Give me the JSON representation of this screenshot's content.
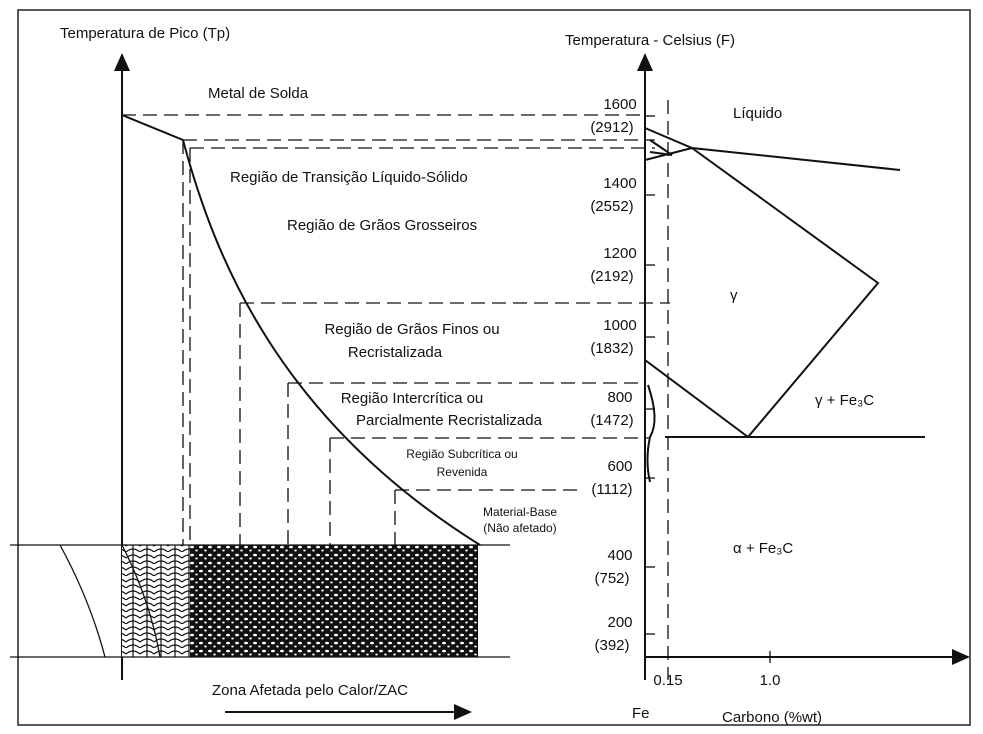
{
  "left_axis": {
    "title": "Temperatura de Pico (Tp)"
  },
  "right_axis": {
    "title": "Temperatura - Celsius (F)",
    "ticks": [
      {
        "celsius": "1600",
        "fahrenheit": "(2912)"
      },
      {
        "celsius": "1400",
        "fahrenheit": "(2552)"
      },
      {
        "celsius": "1200",
        "fahrenheit": "(2192)"
      },
      {
        "celsius": "1000",
        "fahrenheit": "(1832)"
      },
      {
        "celsius": "800",
        "fahrenheit": "(1472)"
      },
      {
        "celsius": "600",
        "fahrenheit": "(1112)"
      },
      {
        "celsius": "400",
        "fahrenheit": "(752)"
      },
      {
        "celsius": "200",
        "fahrenheit": "(392)"
      }
    ]
  },
  "regions": [
    {
      "lines": [
        "Metal de Solda"
      ]
    },
    {
      "lines": [
        "Região de Transição Líquido-Sólido"
      ]
    },
    {
      "lines": [
        "Região de Grãos Grosseiros"
      ]
    },
    {
      "lines": [
        "Região de Grãos Finos ou",
        "Recristalizada"
      ]
    },
    {
      "lines": [
        "Região Intercrítica ou",
        "Parcialmente Recristalizada"
      ]
    },
    {
      "lines": [
        "Região Subcrítica ou",
        "Revenida"
      ]
    },
    {
      "lines": [
        "Material-Base",
        "(Não afetado)"
      ]
    }
  ],
  "phases": [
    "Líquido",
    "γ",
    "γ + Fe₃C",
    "α + Fe₃C"
  ],
  "x_axis": {
    "ticks": [
      "0.15",
      "1.0"
    ],
    "origin": "Fe",
    "title": "Carbono (%wt)"
  },
  "zone_label": "Zona Afetada pelo Calor/ZAC"
}
